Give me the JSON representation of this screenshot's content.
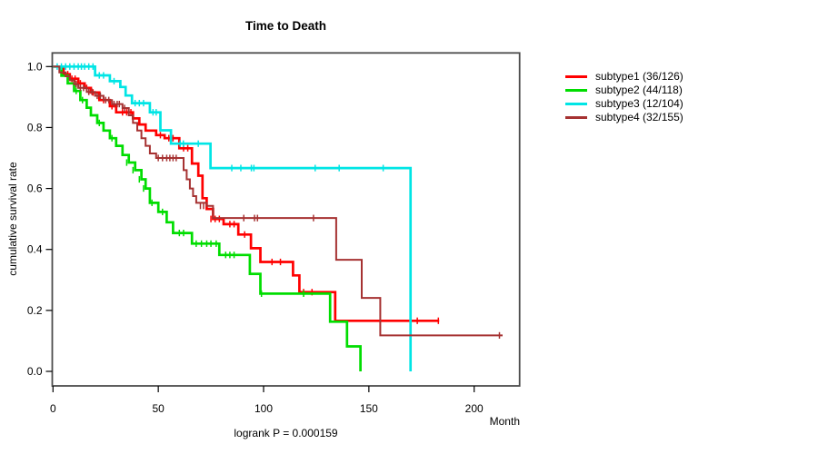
{
  "title": "Time to Death",
  "footer": {
    "logrank_label": "logrank P = 0.000159"
  },
  "legend": {
    "items": [
      {
        "label": "subtype1 (36/126)",
        "color": "#ff0000"
      },
      {
        "label": "subtype2 (44/118)",
        "color": "#00dd00"
      },
      {
        "label": "subtype3 (12/104)",
        "color": "#00e5e5"
      },
      {
        "label": "subtype4 (32/155)",
        "color": "#a63232"
      }
    ]
  },
  "chart_data": {
    "type": "line",
    "subtype": "kaplan-meier-step",
    "title": "Time to Death",
    "xlabel": "Month",
    "ylabel": "cumulative survival rate",
    "xlim": [
      0,
      221.5
    ],
    "ylim": [
      0,
      1.0
    ],
    "grid": false,
    "legend_position": "right-outside",
    "x_ticks": [
      {
        "v": 0,
        "label": "0"
      },
      {
        "v": 50,
        "label": "50"
      },
      {
        "v": 100,
        "label": "100"
      },
      {
        "v": 150,
        "label": "150"
      },
      {
        "v": 200,
        "label": "200"
      }
    ],
    "y_ticks": [
      {
        "v": 0.0,
        "label": "0.0"
      },
      {
        "v": 0.2,
        "label": "0.2"
      },
      {
        "v": 0.4,
        "label": "0.4"
      },
      {
        "v": 0.6,
        "label": "0.6"
      },
      {
        "v": 0.8,
        "label": "0.8"
      },
      {
        "v": 1.0,
        "label": "1.0"
      }
    ],
    "series": [
      {
        "name": "subtype1 (36/126)",
        "color": "#ff0000",
        "line_width": 2.7,
        "end": 183.4,
        "steps": [
          [
            0,
            1
          ],
          [
            5,
            0.975
          ],
          [
            8,
            0.96
          ],
          [
            12,
            0.945
          ],
          [
            15,
            0.93
          ],
          [
            18,
            0.915
          ],
          [
            22,
            0.89
          ],
          [
            27,
            0.87
          ],
          [
            30,
            0.85
          ],
          [
            38,
            0.83
          ],
          [
            41,
            0.81
          ],
          [
            44,
            0.79
          ],
          [
            49,
            0.775
          ],
          [
            53,
            0.765
          ],
          [
            60,
            0.732
          ],
          [
            66,
            0.682
          ],
          [
            69,
            0.642
          ],
          [
            71,
            0.568
          ],
          [
            73,
            0.533
          ],
          [
            76,
            0.5
          ],
          [
            81,
            0.483
          ],
          [
            88,
            0.449
          ],
          [
            94,
            0.404
          ],
          [
            98.5,
            0.359
          ],
          [
            114,
            0.315
          ],
          [
            117,
            0.26
          ],
          [
            134,
            0.166
          ]
        ],
        "censors": [
          [
            7,
            0.975
          ],
          [
            9,
            0.96
          ],
          [
            10.5,
            0.96
          ],
          [
            13,
            0.945
          ],
          [
            16,
            0.93
          ],
          [
            19,
            0.915
          ],
          [
            24,
            0.89
          ],
          [
            28,
            0.87
          ],
          [
            33,
            0.85
          ],
          [
            35,
            0.85
          ],
          [
            37,
            0.85
          ],
          [
            51,
            0.775
          ],
          [
            55,
            0.765
          ],
          [
            57,
            0.765
          ],
          [
            62,
            0.732
          ],
          [
            64,
            0.732
          ],
          [
            75,
            0.5
          ],
          [
            77,
            0.5
          ],
          [
            79,
            0.5
          ],
          [
            84,
            0.483
          ],
          [
            86,
            0.483
          ],
          [
            91,
            0.449
          ],
          [
            104,
            0.359
          ],
          [
            108,
            0.359
          ],
          [
            119,
            0.26
          ],
          [
            123,
            0.26
          ],
          [
            173,
            0.166
          ],
          [
            183,
            0.166
          ]
        ]
      },
      {
        "name": "subtype2 (44/118)",
        "color": "#00dd00",
        "line_width": 2.7,
        "end": 146,
        "steps": [
          [
            0,
            1
          ],
          [
            4,
            0.97
          ],
          [
            7,
            0.945
          ],
          [
            10,
            0.92
          ],
          [
            13,
            0.89
          ],
          [
            16,
            0.865
          ],
          [
            18,
            0.84
          ],
          [
            21,
            0.815
          ],
          [
            24,
            0.79
          ],
          [
            27,
            0.765
          ],
          [
            30,
            0.74
          ],
          [
            33,
            0.71
          ],
          [
            36,
            0.685
          ],
          [
            39,
            0.66
          ],
          [
            42,
            0.63
          ],
          [
            44,
            0.6
          ],
          [
            46,
            0.553
          ],
          [
            50,
            0.523
          ],
          [
            54,
            0.489
          ],
          [
            57,
            0.454
          ],
          [
            66,
            0.419
          ],
          [
            79,
            0.382
          ],
          [
            93.5,
            0.32
          ],
          [
            98.5,
            0.255
          ],
          [
            131.6,
            0.163
          ],
          [
            139.6,
            0.082
          ],
          [
            146,
            0
          ]
        ],
        "censors": [
          [
            11,
            0.92
          ],
          [
            14,
            0.89
          ],
          [
            22,
            0.815
          ],
          [
            28,
            0.765
          ],
          [
            35,
            0.685
          ],
          [
            38,
            0.66
          ],
          [
            41,
            0.63
          ],
          [
            43,
            0.6
          ],
          [
            47,
            0.553
          ],
          [
            52,
            0.523
          ],
          [
            60,
            0.454
          ],
          [
            62,
            0.454
          ],
          [
            68,
            0.419
          ],
          [
            70.5,
            0.419
          ],
          [
            73,
            0.419
          ],
          [
            75,
            0.419
          ],
          [
            77.5,
            0.419
          ],
          [
            82,
            0.382
          ],
          [
            84,
            0.382
          ],
          [
            86,
            0.382
          ],
          [
            99,
            0.255
          ],
          [
            119,
            0.255
          ]
        ]
      },
      {
        "name": "subtype3 (12/104)",
        "color": "#00e5e5",
        "line_width": 2.7,
        "end": 169.8,
        "steps": [
          [
            0,
            1
          ],
          [
            20,
            0.971
          ],
          [
            27,
            0.952
          ],
          [
            32,
            0.933
          ],
          [
            34.5,
            0.905
          ],
          [
            37.5,
            0.88
          ],
          [
            46,
            0.85
          ],
          [
            51,
            0.791
          ],
          [
            56,
            0.747
          ],
          [
            74.8,
            0.667
          ],
          [
            169.8,
            0
          ]
        ],
        "censors": [
          [
            2,
            1
          ],
          [
            4,
            1
          ],
          [
            6,
            1
          ],
          [
            8,
            1
          ],
          [
            10,
            1
          ],
          [
            12,
            1
          ],
          [
            13.5,
            1
          ],
          [
            15,
            1
          ],
          [
            17,
            1
          ],
          [
            19,
            1
          ],
          [
            22,
            0.971
          ],
          [
            24,
            0.971
          ],
          [
            29,
            0.952
          ],
          [
            39,
            0.88
          ],
          [
            41,
            0.88
          ],
          [
            43,
            0.88
          ],
          [
            47.5,
            0.85
          ],
          [
            49,
            0.85
          ],
          [
            60.4,
            0.747
          ],
          [
            61.9,
            0.747
          ],
          [
            69,
            0.747
          ],
          [
            84.9,
            0.667
          ],
          [
            89.2,
            0.667
          ],
          [
            94.2,
            0.667
          ],
          [
            95.4,
            0.667
          ],
          [
            124.5,
            0.667
          ],
          [
            135.9,
            0.667
          ],
          [
            156.8,
            0.667
          ]
        ]
      },
      {
        "name": "subtype4 (32/155)",
        "color": "#a63232",
        "line_width": 2,
        "end": 213.5,
        "steps": [
          [
            0,
            1
          ],
          [
            3,
            0.981
          ],
          [
            6,
            0.968
          ],
          [
            8,
            0.955
          ],
          [
            10,
            0.942
          ],
          [
            12,
            0.93
          ],
          [
            16,
            0.917
          ],
          [
            20,
            0.904
          ],
          [
            24,
            0.89
          ],
          [
            28,
            0.877
          ],
          [
            33,
            0.864
          ],
          [
            36,
            0.84
          ],
          [
            38,
            0.815
          ],
          [
            40,
            0.79
          ],
          [
            42,
            0.765
          ],
          [
            44,
            0.74
          ],
          [
            46,
            0.715
          ],
          [
            49,
            0.7
          ],
          [
            62,
            0.66
          ],
          [
            63.5,
            0.63
          ],
          [
            65,
            0.6
          ],
          [
            66.5,
            0.575
          ],
          [
            68,
            0.553
          ],
          [
            73,
            0.543
          ],
          [
            76,
            0.503
          ],
          [
            134.5,
            0.366
          ],
          [
            146.6,
            0.241
          ],
          [
            155.4,
            0.118
          ]
        ],
        "censors": [
          [
            11,
            0.942
          ],
          [
            13,
            0.93
          ],
          [
            14.5,
            0.93
          ],
          [
            17,
            0.917
          ],
          [
            18.5,
            0.917
          ],
          [
            21,
            0.904
          ],
          [
            22.5,
            0.904
          ],
          [
            25,
            0.89
          ],
          [
            26.5,
            0.89
          ],
          [
            29,
            0.877
          ],
          [
            30.5,
            0.877
          ],
          [
            31.5,
            0.877
          ],
          [
            34,
            0.864
          ],
          [
            50,
            0.7
          ],
          [
            52,
            0.7
          ],
          [
            54,
            0.7
          ],
          [
            55.5,
            0.7
          ],
          [
            57,
            0.7
          ],
          [
            58.5,
            0.7
          ],
          [
            70,
            0.543
          ],
          [
            71.5,
            0.543
          ],
          [
            90.6,
            0.503
          ],
          [
            95.7,
            0.503
          ],
          [
            97.1,
            0.503
          ],
          [
            123.7,
            0.503
          ],
          [
            212,
            0.118
          ]
        ]
      }
    ]
  }
}
